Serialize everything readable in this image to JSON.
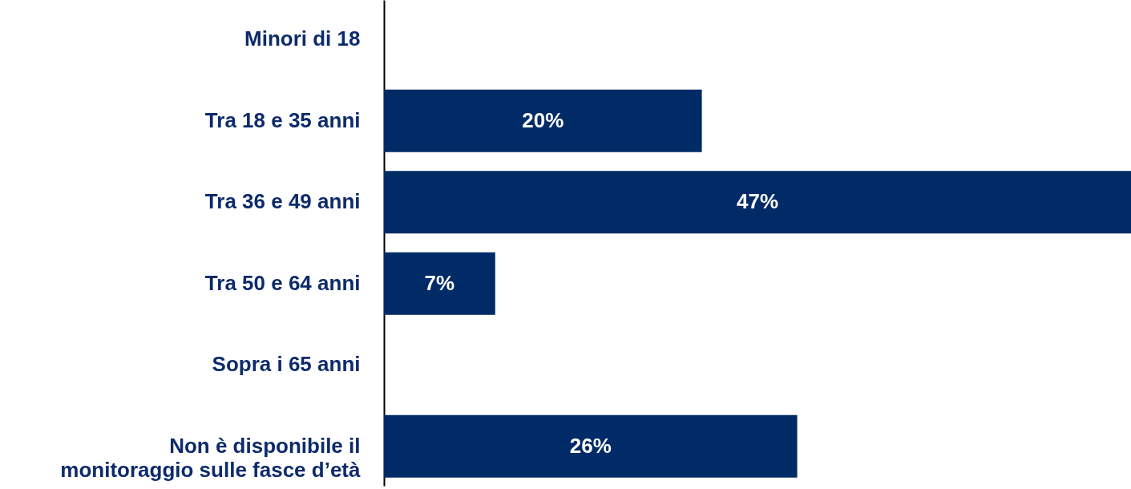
{
  "chart_data": {
    "type": "bar",
    "orientation": "horizontal",
    "categories": [
      "Minori di 18",
      "Tra 18 e 35 anni",
      "Tra 36 e 49 anni",
      "Tra 50 e 64 anni",
      "Sopra i 65 anni",
      "Non è disponibile il monitoraggio sulle fasce d’età"
    ],
    "values": [
      0,
      20,
      47,
      7,
      0,
      26
    ],
    "value_labels": [
      null,
      "20%",
      "47%",
      "7%",
      null,
      "26%"
    ],
    "color": "#002b66",
    "xlim": [
      0,
      47
    ],
    "grid": false
  }
}
